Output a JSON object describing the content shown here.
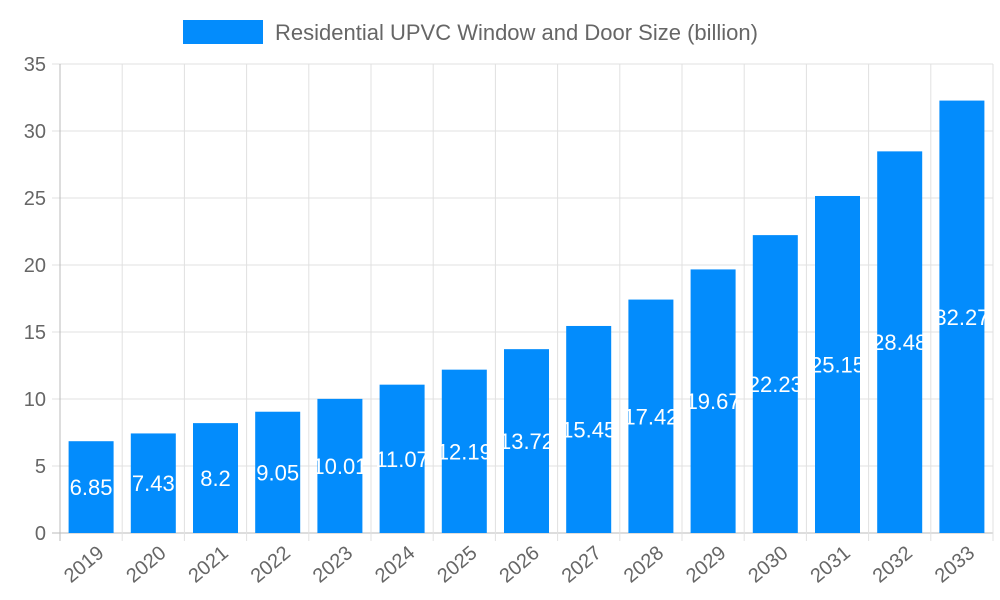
{
  "chart_data": {
    "type": "bar",
    "categories": [
      "2019",
      "2020",
      "2021",
      "2022",
      "2023",
      "2024",
      "2025",
      "2026",
      "2027",
      "2028",
      "2029",
      "2030",
      "2031",
      "2032",
      "2033"
    ],
    "series": [
      {
        "name": "Residential UPVC Window and Door Size (billion)",
        "values": [
          6.85,
          7.43,
          8.2,
          9.05,
          10.01,
          11.07,
          12.19,
          13.72,
          15.45,
          17.42,
          19.67,
          22.23,
          25.15,
          28.48,
          32.27
        ],
        "color": "#038cfc"
      }
    ],
    "ylim": [
      0,
      35
    ],
    "yticks": [
      0,
      5,
      10,
      15,
      20,
      25,
      30,
      35
    ],
    "grid": true,
    "legend": "top",
    "data_labels": true
  }
}
